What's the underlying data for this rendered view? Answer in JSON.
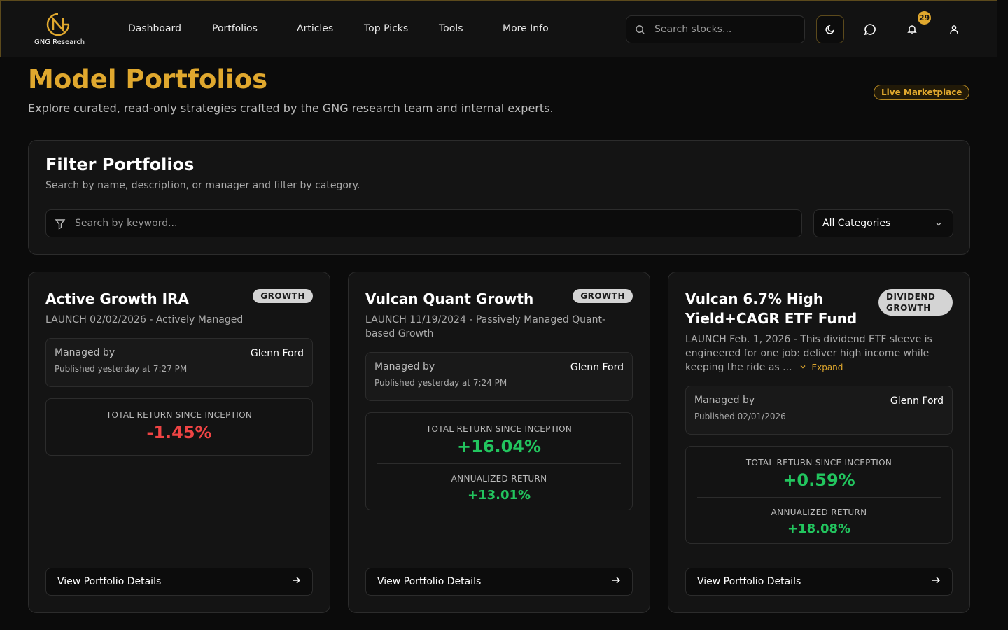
{
  "nav": {
    "brand": "GNG Research",
    "links": [
      "Dashboard",
      "Portfolios",
      "Articles",
      "Top Picks",
      "Tools",
      "More Info"
    ],
    "search_placeholder": "Search stocks...",
    "notification_count": 29
  },
  "header": {
    "title": "Model Portfolios",
    "subtitle": "Explore curated, read-only strategies crafted by the GNG research team and internal experts.",
    "badge": "Live Marketplace"
  },
  "filter": {
    "title": "Filter Portfolios",
    "description": "Search by name, description, or manager and filter by category.",
    "search_placeholder": "Search by keyword...",
    "category": "All Categories"
  },
  "portfolios": [
    {
      "name": "Active Growth IRA",
      "tag": "GROWTH",
      "description": "LAUNCH 02/02/2026 - Actively Managed",
      "managed_label": "Managed by",
      "manager": "Glenn Ford",
      "published": "Published yesterday at 7:27 PM",
      "total_return_label": "TOTAL RETURN SINCE INCEPTION",
      "total_return": "-1.45%",
      "button": "View Portfolio Details"
    },
    {
      "name": "Vulcan Quant Growth",
      "tag": "GROWTH",
      "description": "LAUNCH 11/19/2024 - Passively Managed Quant-based Growth",
      "managed_label": "Managed by",
      "manager": "Glenn Ford",
      "published": "Published yesterday at 7:24 PM",
      "total_return_label": "TOTAL RETURN SINCE INCEPTION",
      "total_return": "+16.04%",
      "annualized_label": "ANNUALIZED RETURN",
      "annualized_return": "+13.01%",
      "button": "View Portfolio Details"
    },
    {
      "name": "Vulcan 6.7% High Yield+CAGR ETF Fund",
      "tag": "DIVIDEND GROWTH",
      "description": "LAUNCH Feb. 1, 2026 - This dividend ETF sleeve is engineered for one job: deliver high income while keeping the ride as ...",
      "expand": "Expand",
      "managed_label": "Managed by",
      "manager": "Glenn Ford",
      "published": "Published 02/01/2026",
      "total_return_label": "TOTAL RETURN SINCE INCEPTION",
      "total_return": "+0.59%",
      "annualized_label": "ANNUALIZED RETURN",
      "annualized_return": "+18.08%",
      "button": "View Portfolio Details"
    }
  ]
}
